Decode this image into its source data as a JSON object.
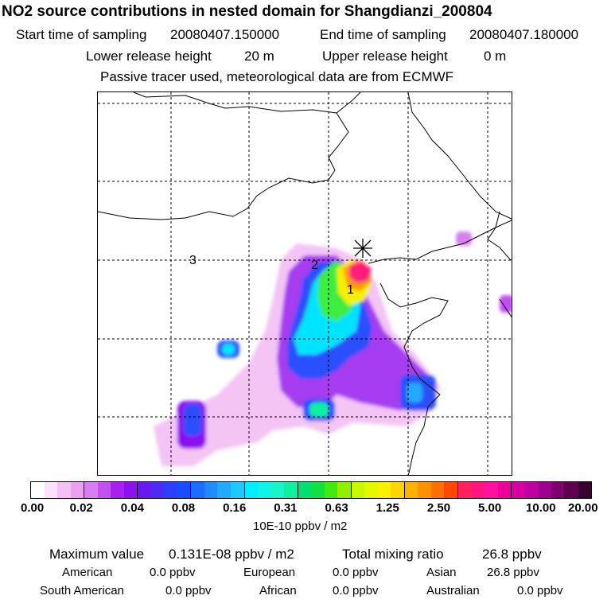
{
  "header": {
    "title": "NO2 source contributions in nested domain for Shangdianzi_200804",
    "start_label": "Start time of sampling",
    "start_value": "20080407.150000",
    "end_label": "End time of sampling",
    "end_value": "20080407.180000",
    "lower_label": "Lower release height",
    "lower_value": "20 m",
    "upper_label": "Upper release height",
    "upper_value": "0 m",
    "note": "Passive tracer used, meteorological data are from ECMWF"
  },
  "map": {
    "point_labels": [
      "1",
      "2",
      "3"
    ],
    "receptor_marker": "star-icon"
  },
  "colorbar": {
    "ticks": [
      "0.00",
      "0.02",
      "0.04",
      "0.08",
      "0.16",
      "0.31",
      "0.63",
      "1.25",
      "2.50",
      "5.00",
      "10.00",
      "20.00"
    ],
    "units": "10E-10 ppbv / m2",
    "colors": [
      "#ffffff",
      "#fbe0fb",
      "#f4c0f6",
      "#eca0f0",
      "#d77ff0",
      "#c450f0",
      "#a820f0",
      "#8c10f0",
      "#6a18f0",
      "#4a2cf4",
      "#2a40fa",
      "#1a4cff",
      "#1a6cff",
      "#1e8cff",
      "#22aaff",
      "#1ccaff",
      "#00eeff",
      "#10f4e8",
      "#18f4c8",
      "#10f0a0",
      "#00e070",
      "#10e040",
      "#40ec10",
      "#90f000",
      "#c8f800",
      "#e6f800",
      "#f8f000",
      "#ffd400",
      "#ffb000",
      "#ff9000",
      "#ff7000",
      "#ff4800",
      "#ff2060",
      "#ff1480",
      "#ff10a0",
      "#f00098",
      "#d800a0",
      "#c000a0",
      "#a00090",
      "#800070",
      "#600050",
      "#3a0030"
    ]
  },
  "stats": {
    "max_label": "Maximum value",
    "max_value": "0.131E-08 ppbv / m2",
    "total_label": "Total mixing ratio",
    "total_value": "26.8 ppbv",
    "regions": [
      {
        "name": "American",
        "value": "0.0 ppbv"
      },
      {
        "name": "European",
        "value": "0.0 ppbv"
      },
      {
        "name": "Asian",
        "value": "26.8 ppbv"
      },
      {
        "name": "South American",
        "value": "0.0 ppbv"
      },
      {
        "name": "African",
        "value": "0.0 ppbv"
      },
      {
        "name": "Australian",
        "value": "0.0 ppbv"
      }
    ]
  }
}
